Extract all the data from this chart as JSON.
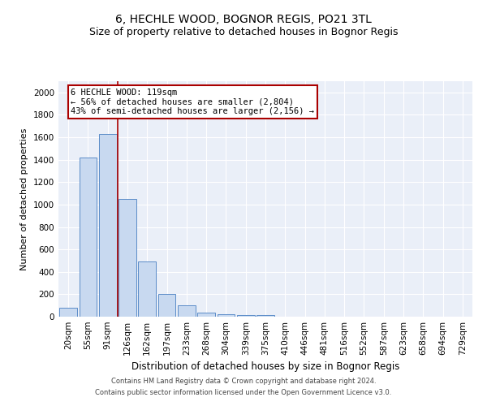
{
  "title": "6, HECHLE WOOD, BOGNOR REGIS, PO21 3TL",
  "subtitle": "Size of property relative to detached houses in Bognor Regis",
  "xlabel": "Distribution of detached houses by size in Bognor Regis",
  "ylabel": "Number of detached properties",
  "footer_line1": "Contains HM Land Registry data © Crown copyright and database right 2024.",
  "footer_line2": "Contains public sector information licensed under the Open Government Licence v3.0.",
  "annotation_line1": "6 HECHLE WOOD: 119sqm",
  "annotation_line2": "← 56% of detached houses are smaller (2,804)",
  "annotation_line3": "43% of semi-detached houses are larger (2,156) →",
  "bar_color": "#c8d9f0",
  "bar_edge_color": "#5b8cc8",
  "vline_color": "#aa0000",
  "background_color": "#eaeff8",
  "grid_color": "#ffffff",
  "categories": [
    "20sqm",
    "55sqm",
    "91sqm",
    "126sqm",
    "162sqm",
    "197sqm",
    "233sqm",
    "268sqm",
    "304sqm",
    "339sqm",
    "375sqm",
    "410sqm",
    "446sqm",
    "481sqm",
    "516sqm",
    "552sqm",
    "587sqm",
    "623sqm",
    "658sqm",
    "694sqm",
    "729sqm"
  ],
  "values": [
    80,
    1420,
    1630,
    1050,
    490,
    200,
    100,
    35,
    25,
    18,
    12,
    0,
    0,
    0,
    0,
    0,
    0,
    0,
    0,
    0,
    0
  ],
  "ylim": [
    0,
    2100
  ],
  "yticks": [
    0,
    200,
    400,
    600,
    800,
    1000,
    1200,
    1400,
    1600,
    1800,
    2000
  ],
  "vline_x_index": 2.5,
  "title_fontsize": 10,
  "subtitle_fontsize": 9,
  "xlabel_fontsize": 8.5,
  "ylabel_fontsize": 8,
  "tick_fontsize": 7.5,
  "annotation_fontsize": 7.5,
  "footer_fontsize": 6
}
